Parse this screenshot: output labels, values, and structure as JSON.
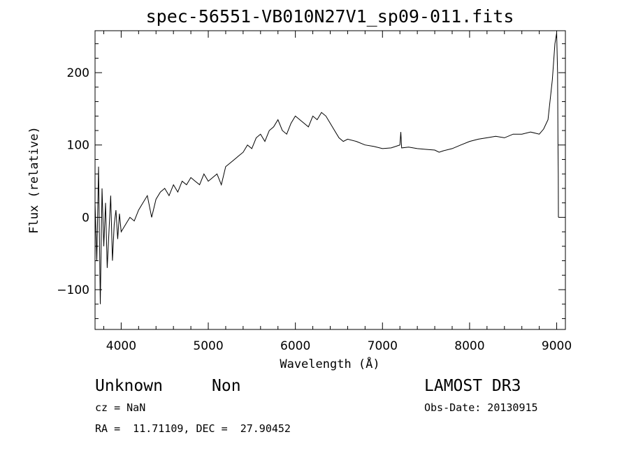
{
  "chart_data": {
    "type": "line",
    "title": "spec-56551-VB010N27V1_sp09-011.fits",
    "xlabel": "Wavelength (Å)",
    "ylabel": "Flux (relative)",
    "xlim": [
      3700,
      9100
    ],
    "ylim": [
      -155,
      258
    ],
    "xticks": [
      4000,
      5000,
      6000,
      7000,
      8000,
      9000
    ],
    "yticks": [
      -100,
      0,
      100,
      200
    ],
    "grid": false,
    "series": [
      {
        "x": [
          3700,
          3720,
          3740,
          3760,
          3780,
          3800,
          3820,
          3840,
          3860,
          3880,
          3900,
          3920,
          3940,
          3960,
          3980,
          4000,
          4050,
          4100,
          4150,
          4200,
          4250,
          4300,
          4350,
          4400,
          4450,
          4500,
          4550,
          4600,
          4650,
          4700,
          4750,
          4800,
          4850,
          4900,
          4950,
          5000,
          5050,
          5100,
          5150,
          5200,
          5250,
          5300,
          5350,
          5400,
          5450,
          5500,
          5550,
          5600,
          5650,
          5700,
          5750,
          5800,
          5850,
          5900,
          5950,
          6000,
          6050,
          6100,
          6150,
          6200,
          6250,
          6300,
          6350,
          6400,
          6450,
          6500,
          6550,
          6600,
          6700,
          6800,
          6900,
          7000,
          7100,
          7200,
          7210,
          7220,
          7300,
          7400,
          7500,
          7600,
          7650,
          7700,
          7800,
          7900,
          8000,
          8100,
          8200,
          8300,
          8400,
          8500,
          8600,
          8700,
          8800,
          8850,
          8900,
          8950,
          8980,
          9000,
          9010,
          9015,
          9018,
          9020
        ],
        "y": [
          20,
          -60,
          70,
          -120,
          40,
          -40,
          20,
          -70,
          -20,
          30,
          -60,
          -10,
          10,
          -30,
          5,
          -20,
          -10,
          0,
          -5,
          10,
          20,
          30,
          0,
          25,
          35,
          40,
          30,
          45,
          35,
          50,
          45,
          55,
          50,
          45,
          60,
          50,
          55,
          60,
          45,
          70,
          75,
          80,
          85,
          90,
          100,
          95,
          110,
          115,
          105,
          120,
          125,
          135,
          120,
          115,
          130,
          140,
          135,
          130,
          125,
          140,
          135,
          145,
          140,
          130,
          120,
          110,
          105,
          108,
          105,
          100,
          98,
          95,
          96,
          100,
          118,
          96,
          97,
          95,
          94,
          93,
          90,
          92,
          95,
          100,
          105,
          108,
          110,
          112,
          110,
          115,
          115,
          118,
          115,
          122,
          135,
          190,
          240,
          255,
          200,
          100,
          60,
          0
        ]
      }
    ],
    "annotations": {
      "object_class": "Unknown",
      "object_subclass": "Non",
      "redshift": "cz = NaN",
      "coordinates": "RA =  11.71109, DEC =  27.90452",
      "survey": "LAMOST DR3",
      "obs_date": "Obs-Date: 20130915"
    }
  }
}
